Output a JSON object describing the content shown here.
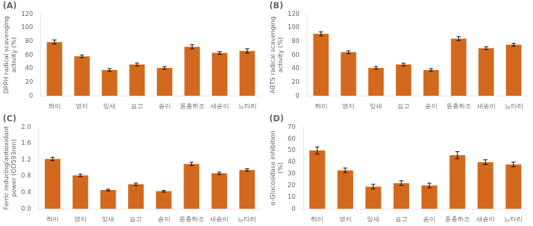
{
  "chart_data": [
    {
      "type": "bar",
      "title": "(A)",
      "categories": [
        "햐이",
        "영지",
        "잎새",
        "표고",
        "송이",
        "동충하조",
        "새송이",
        "느타리"
      ],
      "values": [
        79,
        58,
        38,
        46,
        41,
        72,
        63,
        66
      ],
      "errors": [
        3,
        2,
        2,
        2,
        2,
        3,
        2,
        3
      ],
      "ylabel": "DPPH radical scavenging\nactivity (%)",
      "ylim": [
        0,
        120
      ],
      "yticks": [
        0,
        20,
        40,
        60,
        80,
        100,
        120
      ],
      "color": "#D2691E",
      "grid": false
    },
    {
      "type": "bar",
      "title": "(B)",
      "categories": [
        "햐이",
        "영지",
        "잎새",
        "표고",
        "송이",
        "동충하조",
        "새송이",
        "느타리"
      ],
      "values": [
        91,
        64,
        41,
        46,
        38,
        84,
        70,
        75
      ],
      "errors": [
        3,
        2,
        2,
        2,
        2,
        3,
        2,
        2
      ],
      "ylabel": "ABTS radical scavenging\nactivity (%)",
      "ylim": [
        0,
        120
      ],
      "yticks": [
        0,
        20,
        40,
        60,
        80,
        100,
        120
      ],
      "color": "#D2691E",
      "grid": false
    },
    {
      "type": "bar",
      "title": "(C)",
      "categories": [
        "햐이",
        "영지",
        "잎새",
        "표고",
        "송이",
        "동충하조",
        "새송이",
        "느타리"
      ],
      "values": [
        1.22,
        0.82,
        0.46,
        0.6,
        0.43,
        1.1,
        0.87,
        0.95
      ],
      "errors": [
        0.04,
        0.03,
        0.02,
        0.03,
        0.02,
        0.04,
        0.03,
        0.03
      ],
      "ylabel": "Ferric reducing/antioxidant\npower (OD593nm)",
      "ylim": [
        0.0,
        2.0
      ],
      "yticks": [
        {
          "value": 0.0,
          "label": "0.0"
        },
        0.4,
        0.8,
        1.2,
        1.6,
        {
          "value": 2.0,
          "label": "2.0"
        }
      ],
      "color": "#D2691E",
      "grid": false
    },
    {
      "type": "bar",
      "title": "(D)",
      "categories": [
        "햐이",
        "영지",
        "잎새",
        "표고",
        "송이",
        "동충하조",
        "새송이",
        "느타리"
      ],
      "values": [
        50,
        33,
        19,
        22,
        20,
        46,
        40,
        38
      ],
      "errors": [
        3,
        2,
        2,
        2,
        2,
        3,
        2,
        2
      ],
      "ylabel": "α-Glucosidase inhibition\n(%)",
      "ylim": [
        0,
        70
      ],
      "yticks": [
        0,
        10,
        20,
        30,
        40,
        50,
        60,
        70
      ],
      "color": "#D2691E",
      "grid": false
    }
  ]
}
